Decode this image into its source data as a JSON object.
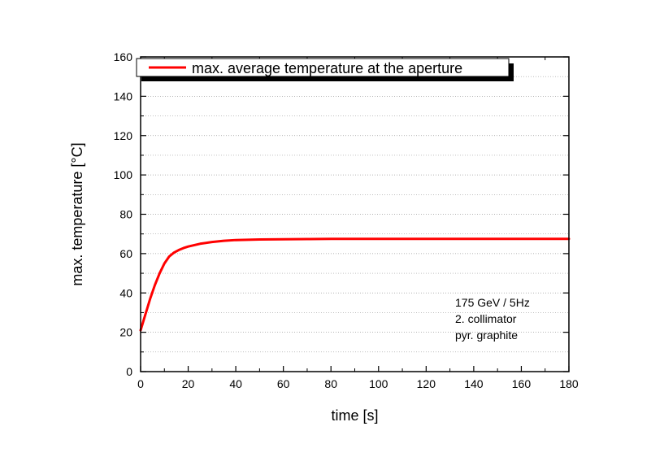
{
  "chart_data": {
    "type": "line",
    "xlabel": "time [s]",
    "ylabel": "max. temperature [°C]",
    "xlim": [
      0,
      180
    ],
    "ylim": [
      0,
      160
    ],
    "xticks": [
      0,
      20,
      40,
      60,
      80,
      100,
      120,
      140,
      160,
      180
    ],
    "yticks": [
      0,
      20,
      40,
      60,
      80,
      100,
      120,
      140,
      160
    ],
    "grid": true,
    "legend_position": "top-left",
    "series": [
      {
        "name": "max. average temperature at the aperture",
        "color": "#ff0000",
        "x": [
          0,
          2,
          4,
          6,
          8,
          10,
          12,
          14,
          16,
          18,
          20,
          25,
          30,
          35,
          40,
          50,
          60,
          70,
          80,
          100,
          120,
          140,
          160,
          180
        ],
        "y": [
          21,
          29,
          37,
          44,
          50,
          55,
          58.5,
          60.5,
          61.8,
          62.8,
          63.6,
          65,
          65.9,
          66.5,
          66.9,
          67.2,
          67.3,
          67.4,
          67.5,
          67.5,
          67.5,
          67.5,
          67.5,
          67.5
        ]
      }
    ],
    "annotations": [
      "175 GeV / 5Hz",
      "2. collimator",
      "pyr. graphite"
    ]
  }
}
